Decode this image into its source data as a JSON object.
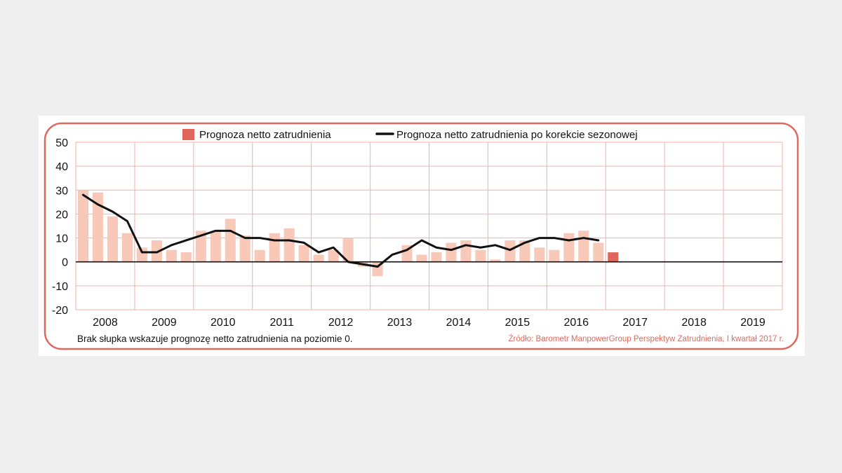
{
  "chart_data": {
    "type": "bar",
    "title": "",
    "xlabel": "",
    "ylabel": "",
    "ylim": [
      -20,
      50
    ],
    "yticks": [
      50,
      40,
      30,
      20,
      10,
      0,
      -10,
      -20
    ],
    "years": [
      "2008",
      "2009",
      "2010",
      "2011",
      "2012",
      "2013",
      "2014",
      "2015",
      "2016",
      "2017",
      "2018",
      "2019"
    ],
    "legend": {
      "bars": "Prognoza netto zatrudnienia",
      "line": "Prognoza netto zatrudnienia po korekcie sezonowej"
    },
    "series": [
      {
        "name": "Prognoza netto zatrudnienia",
        "kind": "bar",
        "values": [
          30,
          29,
          19,
          12,
          6,
          9,
          5,
          4,
          13,
          13,
          18,
          11,
          5,
          12,
          14,
          7,
          3,
          5,
          10,
          -2,
          -6,
          0,
          7,
          3,
          4,
          8,
          9,
          5,
          1,
          9,
          9,
          6,
          5,
          12,
          13,
          8,
          4
        ]
      },
      {
        "name": "Prognoza netto zatrudnienia po korekcie sezonowej",
        "kind": "line",
        "values": [
          28,
          24,
          21,
          17,
          4,
          4,
          7,
          9,
          11,
          13,
          13,
          10,
          10,
          9,
          9,
          8,
          4,
          6,
          0,
          -1,
          -2,
          3,
          5,
          9,
          6,
          5,
          7,
          6,
          7,
          5,
          8,
          10,
          10,
          9,
          10,
          9
        ]
      }
    ],
    "highlight_index": 36
  },
  "colors": {
    "bar": "#f8c9b9",
    "bar_highlight": "#e2655a",
    "line": "#111111",
    "grid": "#f3b0a7",
    "frame": "#e0685c",
    "zero_line": "#111111"
  },
  "footnote": {
    "note": "Brak słupka wskazuje prognozę netto zatrudnienia na poziomie 0.",
    "source": "Źródło: Barometr ManpowerGroup Perspektyw Zatrudnienia, I kwartał 2017 r."
  }
}
